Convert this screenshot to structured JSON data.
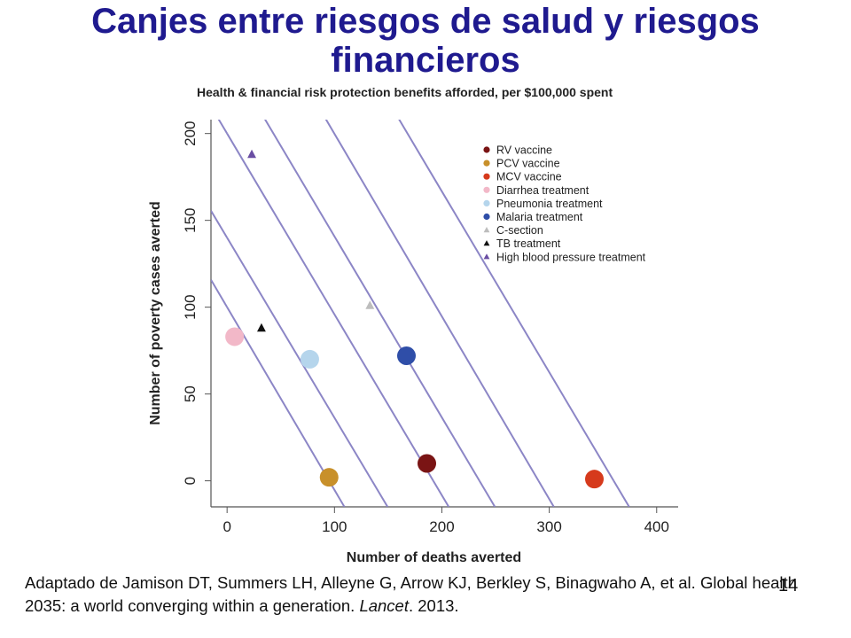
{
  "slide": {
    "title_line1": "Canjes entre riesgos de salud y riesgos",
    "title_line2": "financieros",
    "citation_part1": "Adaptado de Jamison DT, Summers LH, Alleyne G, Arrow KJ, Berkley S, Binagwaho A, et al. Global health 2035: a world converging within a generation. ",
    "citation_journal": "Lancet",
    "citation_part2": ". 2013.",
    "slide_number": "14"
  },
  "colors": {
    "title": "#1f1a8f",
    "isoline": "#8c86c6"
  },
  "chart_data": {
    "type": "scatter",
    "title": "Health & financial risk protection benefits afforded, per $100,000 spent",
    "xlabel": "Number of deaths averted",
    "ylabel": "Number of poverty cases averted",
    "xlim": [
      -15,
      420
    ],
    "ylim": [
      -15,
      208
    ],
    "xticks": [
      0,
      100,
      200,
      300,
      400
    ],
    "yticks": [
      0,
      50,
      100,
      150,
      200
    ],
    "legend_position": "top-right",
    "grid": false,
    "isolines": [
      {
        "x_intercept": 95,
        "y_intercept": 100
      },
      {
        "x_intercept": 135,
        "y_intercept": 140
      },
      {
        "x_intercept": 192,
        "y_intercept": 200
      },
      {
        "x_intercept": 235,
        "y_intercept": 245
      },
      {
        "x_intercept": 290,
        "y_intercept": 305
      },
      {
        "x_intercept": 360,
        "y_intercept": 375
      }
    ],
    "series": [
      {
        "name": "RV vaccine",
        "marker": "circle",
        "color": "#7a1414",
        "points": [
          [
            186,
            10
          ]
        ]
      },
      {
        "name": "PCV vaccine",
        "marker": "circle",
        "color": "#c8902a",
        "points": [
          [
            95,
            2
          ]
        ]
      },
      {
        "name": "MCV vaccine",
        "marker": "circle",
        "color": "#d63a1c",
        "points": [
          [
            342,
            1
          ]
        ]
      },
      {
        "name": "Diarrhea treatment",
        "marker": "circle",
        "color": "#f2b8c8",
        "points": [
          [
            7,
            83
          ]
        ]
      },
      {
        "name": "Pneumonia treatment",
        "marker": "circle",
        "color": "#b5d5ec",
        "points": [
          [
            77,
            70
          ]
        ]
      },
      {
        "name": "Malaria treatment",
        "marker": "circle",
        "color": "#2f4ea8",
        "points": [
          [
            167,
            72
          ]
        ]
      },
      {
        "name": "C-section",
        "marker": "triangle",
        "color": "#bdbdbd",
        "points": [
          [
            133,
            101
          ]
        ]
      },
      {
        "name": "TB treatment",
        "marker": "triangle",
        "color": "#111111",
        "points": [
          [
            32,
            88
          ]
        ]
      },
      {
        "name": "High blood pressure treatment",
        "marker": "triangle",
        "color": "#6a4ea3",
        "points": [
          [
            23,
            188
          ]
        ]
      }
    ]
  }
}
